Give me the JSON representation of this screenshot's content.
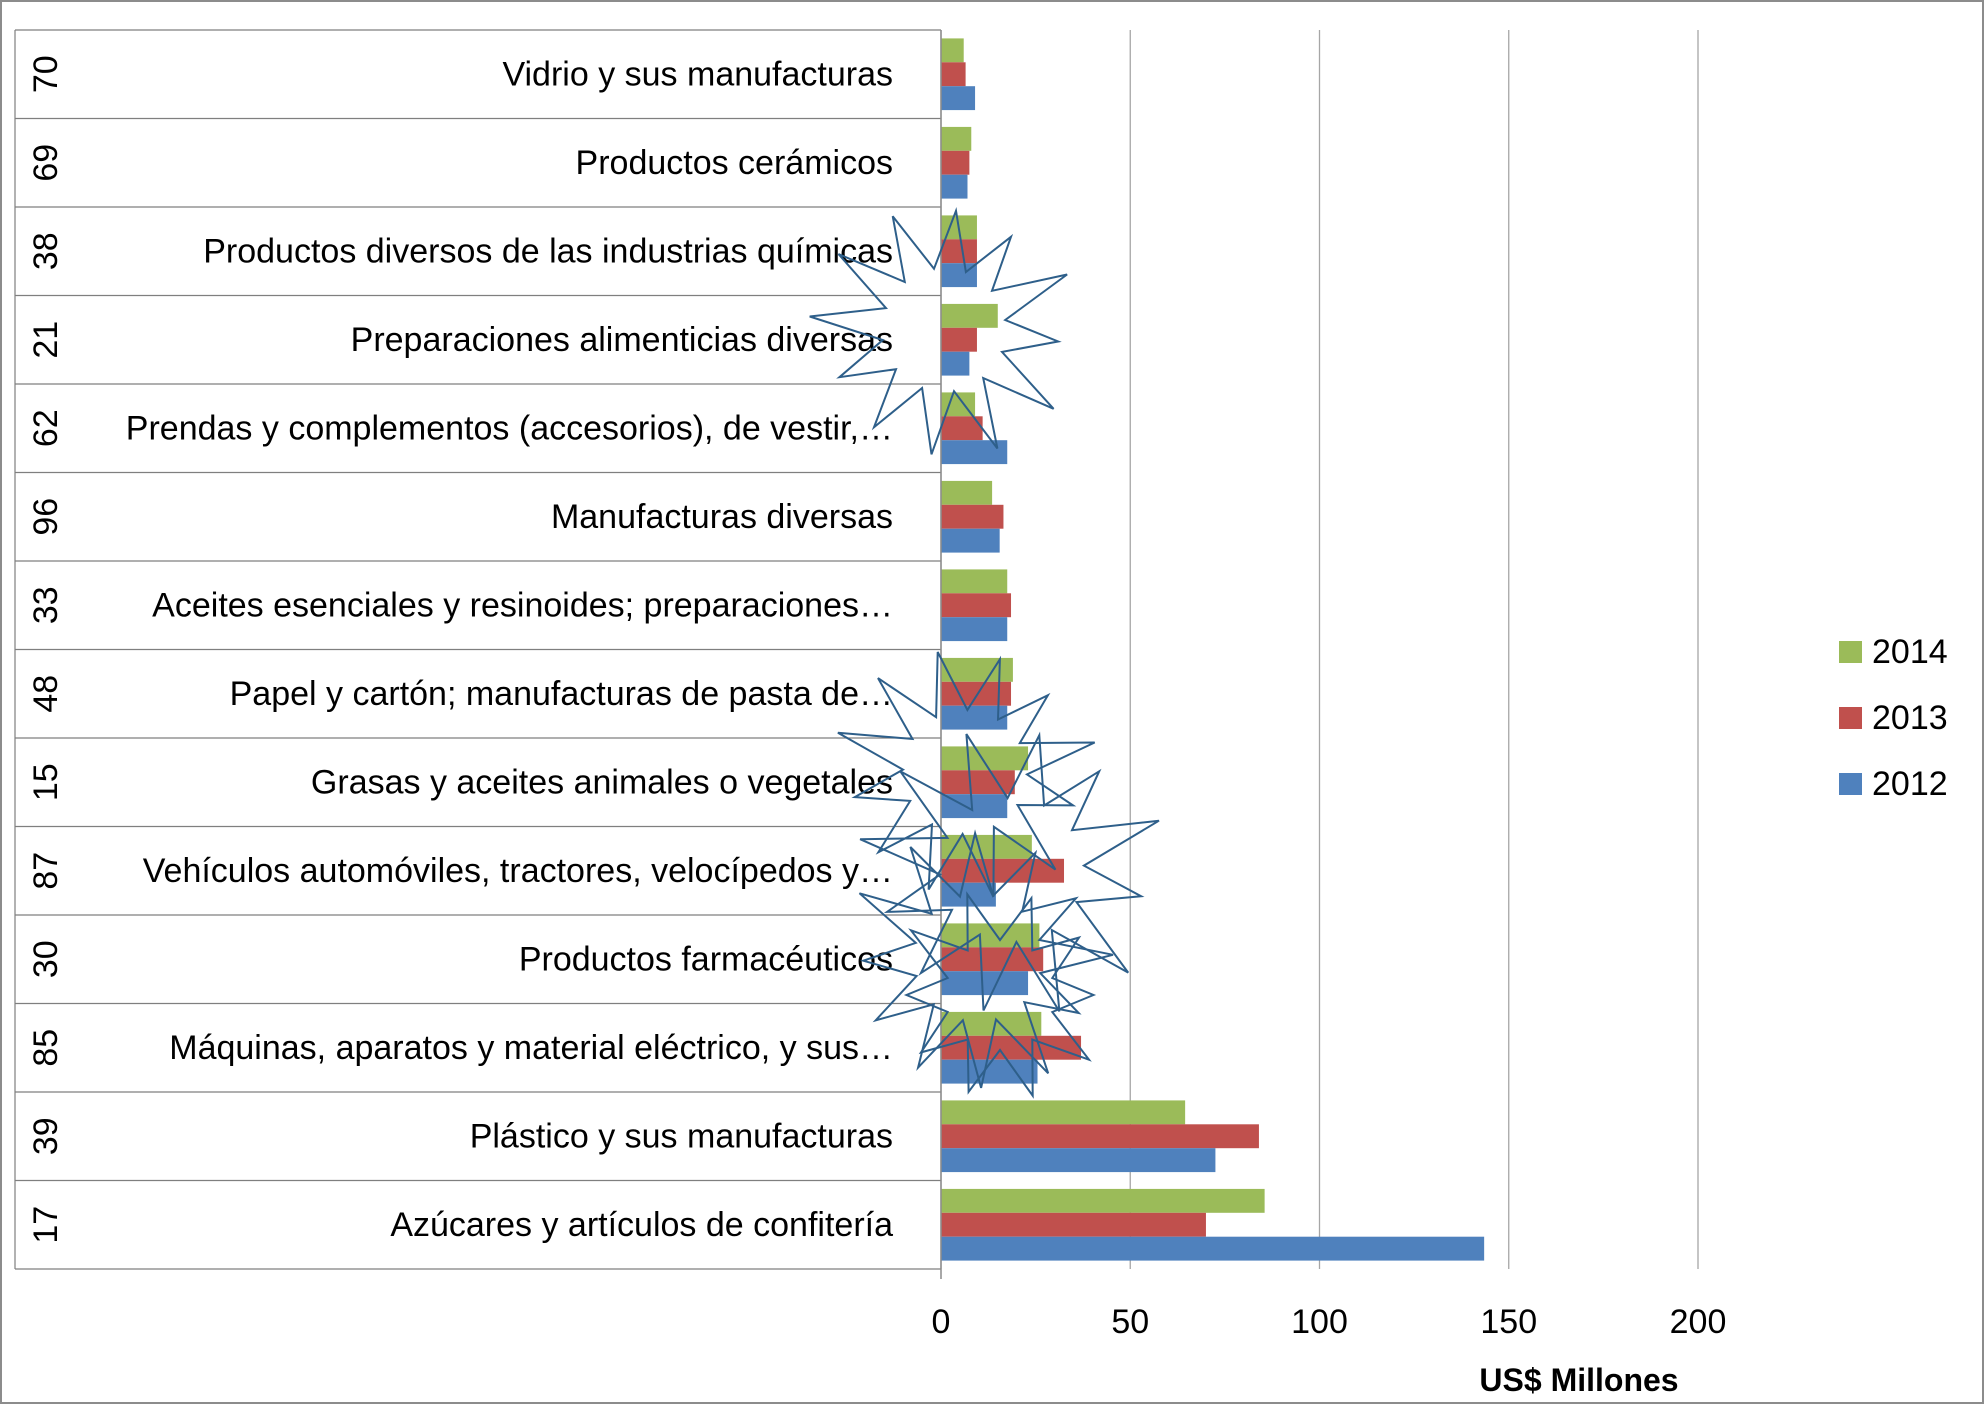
{
  "chart_data": {
    "type": "bar",
    "orientation": "horizontal",
    "codes": [
      "70",
      "69",
      "38",
      "21",
      "62",
      "96",
      "33",
      "48",
      "15",
      "87",
      "30",
      "85",
      "39",
      "17"
    ],
    "categories": [
      "Vidrio y sus manufacturas",
      "Productos cerámicos",
      "Productos diversos de las industrias químicas",
      "Preparaciones alimenticias diversas",
      "Prendas y complementos (accesorios), de vestir,…",
      "Manufacturas diversas",
      "Aceites esenciales y resinoides; preparaciones…",
      "Papel y cartón; manufacturas de pasta de…",
      "Grasas y aceites animales o vegetales",
      "Vehículos automóviles, tractores, velocípedos y…",
      "Productos farmacéuticos",
      "Máquinas, aparatos y material eléctrico, y sus…",
      "Plástico y sus manufacturas",
      "Azúcares y artículos de confitería"
    ],
    "series": [
      {
        "name": "2014",
        "color": "#9bbb59",
        "values": [
          6,
          8,
          9.5,
          15,
          9,
          13.5,
          17.5,
          19,
          23,
          24,
          26,
          26.5,
          64.5,
          85.5
        ]
      },
      {
        "name": "2013",
        "color": "#c0504d",
        "values": [
          6.5,
          7.5,
          9.5,
          9.5,
          11,
          16.5,
          18.5,
          18.5,
          19.5,
          32.5,
          27,
          37,
          84,
          70
        ]
      },
      {
        "name": "2012",
        "color": "#4f81bd",
        "values": [
          9,
          7,
          9.5,
          7.5,
          17.5,
          15.5,
          17.5,
          17.5,
          17.5,
          14.5,
          23,
          25.5,
          72.5,
          143.5
        ]
      }
    ],
    "legend_order": [
      "2014",
      "2013",
      "2012"
    ],
    "xlabel": "US$ Millones",
    "xlim": [
      0,
      200
    ],
    "xticks": [
      "0",
      "50",
      "100",
      "150",
      "200"
    ],
    "grid": true,
    "legend_position": "right",
    "annotations": [
      "starburst",
      "starburst",
      "starburst",
      "starburst",
      "starburst"
    ]
  }
}
